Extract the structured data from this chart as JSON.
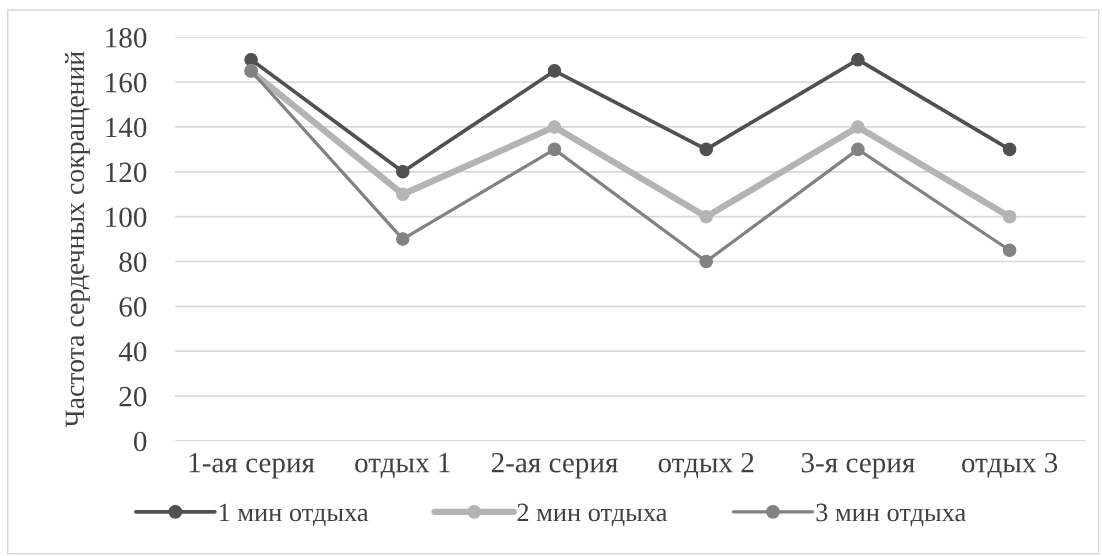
{
  "chart_data": {
    "type": "line",
    "ylabel": "Частота сердечных сокращений",
    "categories": [
      "1-ая серия",
      "отдых 1",
      "2-ая серия",
      "отдых 2",
      "3-я серия",
      "отдых 3"
    ],
    "series": [
      {
        "name": "1 мин отдыха",
        "color": "#505050",
        "values": [
          170,
          120,
          165,
          130,
          170,
          130
        ]
      },
      {
        "name": "2 мин отдыха",
        "color": "#b4b4b4",
        "values": [
          165,
          110,
          140,
          100,
          140,
          100
        ]
      },
      {
        "name": "3 мин отдыха",
        "color": "#828282",
        "values": [
          165,
          90,
          130,
          80,
          130,
          85
        ]
      }
    ],
    "ylim": [
      0,
      180
    ],
    "yticks": [
      0,
      20,
      40,
      60,
      80,
      100,
      120,
      140,
      160,
      180
    ],
    "grid": "y",
    "legend": "bottom",
    "marker": "circle",
    "line_style": "solid"
  }
}
